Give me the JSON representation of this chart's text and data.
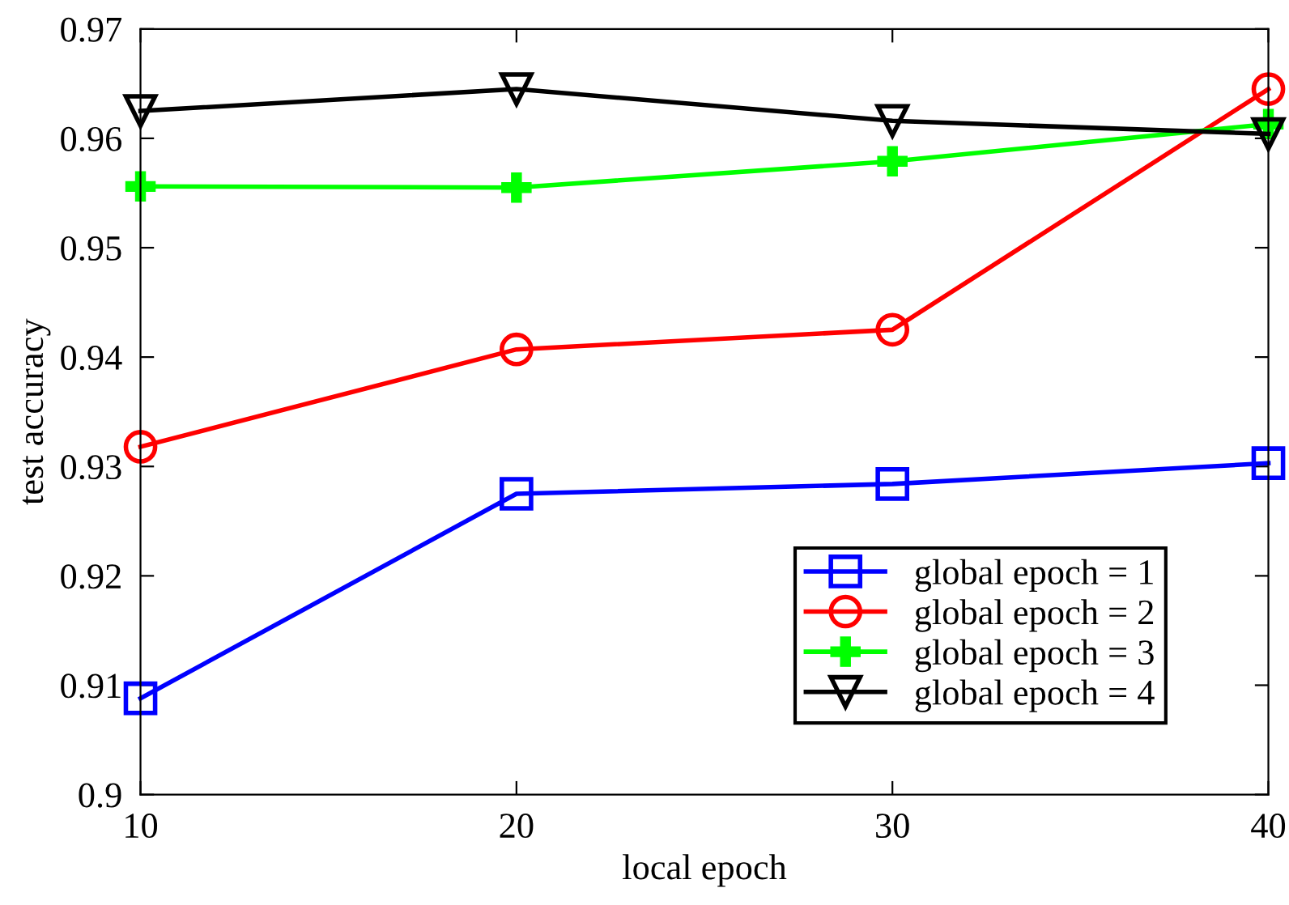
{
  "chart_data": {
    "type": "line",
    "xlabel": "local epoch",
    "ylabel": "test accuracy",
    "x": [
      10,
      20,
      30,
      40
    ],
    "series": [
      {
        "name": "global epoch = 1",
        "color": "#0000ff",
        "marker": "square",
        "values": [
          0.9088,
          0.9275,
          0.9284,
          0.9303
        ]
      },
      {
        "name": "global epoch = 2",
        "color": "#ff0000",
        "marker": "circle",
        "values": [
          0.9318,
          0.9407,
          0.9425,
          0.9645
        ]
      },
      {
        "name": "global epoch = 3",
        "color": "#00ff00",
        "marker": "cross",
        "values": [
          0.9556,
          0.9555,
          0.9579,
          0.9613
        ]
      },
      {
        "name": "global epoch = 4",
        "color": "#000000",
        "marker": "triangle",
        "values": [
          0.9625,
          0.9645,
          0.9616,
          0.9604
        ]
      }
    ],
    "xlim": [
      10,
      40
    ],
    "xticks": [
      10,
      20,
      30,
      40
    ],
    "ylim": [
      0.9,
      0.97
    ],
    "yticks": [
      0.9,
      0.91,
      0.92,
      0.93,
      0.94,
      0.95,
      0.96,
      0.97
    ],
    "grid": false,
    "legend": "bottom right",
    "line_style": "solid"
  }
}
